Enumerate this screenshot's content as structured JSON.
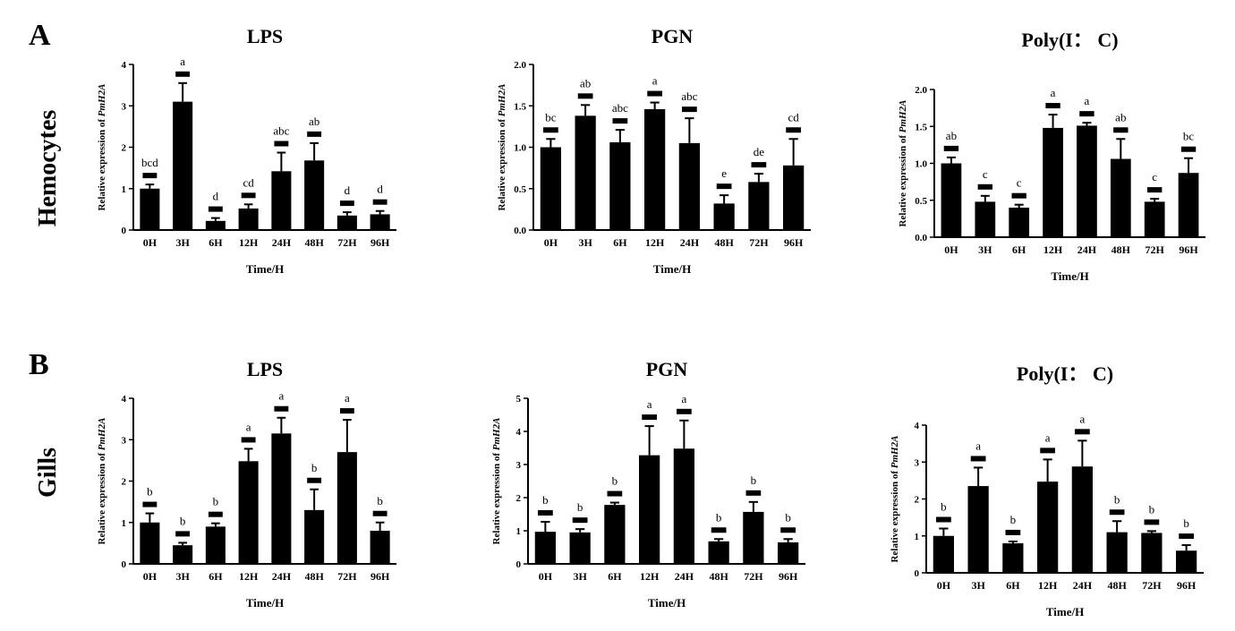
{
  "panel_labels": [
    "A",
    "B"
  ],
  "row_labels": [
    "Hemocytes",
    "Gills"
  ],
  "chart_data": [
    {
      "type": "bar",
      "panel": "A",
      "row": "Hemocytes",
      "title": "LPS",
      "xlabel": "Time/H",
      "ylabel": [
        "Relative expression of",
        "PmH2A"
      ],
      "categories": [
        "0H",
        "3H",
        "6H",
        "12H",
        "24H",
        "48H",
        "72H",
        "96H"
      ],
      "values": [
        1.0,
        3.1,
        0.22,
        0.52,
        1.42,
        1.68,
        0.35,
        0.38
      ],
      "errors": [
        0.1,
        0.45,
        0.07,
        0.1,
        0.45,
        0.42,
        0.08,
        0.08
      ],
      "letters": [
        "bcd",
        "a",
        "d",
        "cd",
        "abc",
        "ab",
        "d",
        "d"
      ],
      "ylim": [
        0,
        4
      ],
      "yticks": [
        "0",
        "1",
        "2",
        "3",
        "4"
      ],
      "bar_color": "#000000"
    },
    {
      "type": "bar",
      "panel": "A",
      "row": "Hemocytes",
      "title": "PGN",
      "xlabel": "Time/H",
      "ylabel": [
        "Relative expression of",
        "PmH2A"
      ],
      "categories": [
        "0H",
        "3H",
        "6H",
        "12H",
        "24H",
        "48H",
        "72H",
        "96H"
      ],
      "values": [
        1.0,
        1.38,
        1.06,
        1.46,
        1.05,
        0.32,
        0.58,
        0.78
      ],
      "errors": [
        0.1,
        0.13,
        0.15,
        0.08,
        0.3,
        0.1,
        0.1,
        0.32
      ],
      "letters": [
        "bc",
        "ab",
        "abc",
        "a",
        "abc",
        "e",
        "de",
        "cd"
      ],
      "ylim": [
        0,
        2
      ],
      "yticks": [
        "0.0",
        "0.5",
        "1.0",
        "1.5",
        "2.0"
      ],
      "bar_color": "#000000"
    },
    {
      "type": "bar",
      "panel": "A",
      "row": "Hemocytes",
      "title": "Poly(I： C)",
      "xlabel": "Time/H",
      "ylabel": [
        "Relative expression of",
        "PmH2A"
      ],
      "categories": [
        "0H",
        "3H",
        "6H",
        "12H",
        "24H",
        "48H",
        "72H",
        "96H"
      ],
      "values": [
        1.0,
        0.48,
        0.4,
        1.48,
        1.51,
        1.06,
        0.48,
        0.87
      ],
      "errors": [
        0.08,
        0.08,
        0.04,
        0.18,
        0.04,
        0.27,
        0.04,
        0.2
      ],
      "letters": [
        "ab",
        "c",
        "c",
        "a",
        "a",
        "ab",
        "c",
        "bc"
      ],
      "ylim": [
        0,
        2
      ],
      "yticks": [
        "0.0",
        "0.5",
        "1.0",
        "1.5",
        "2.0"
      ],
      "bar_color": "#000000"
    },
    {
      "type": "bar",
      "panel": "B",
      "row": "Gills",
      "title": "LPS",
      "xlabel": "Time/H",
      "ylabel": [
        "Relative expression of",
        "PmH2A"
      ],
      "categories": [
        "0H",
        "3H",
        "6H",
        "12H",
        "24H",
        "48H",
        "72H",
        "96H"
      ],
      "values": [
        1.0,
        0.45,
        0.9,
        2.48,
        3.15,
        1.3,
        2.7,
        0.8
      ],
      "errors": [
        0.22,
        0.06,
        0.08,
        0.3,
        0.38,
        0.5,
        0.78,
        0.2
      ],
      "letters": [
        "b",
        "b",
        "b",
        "a",
        "a",
        "b",
        "a",
        "b"
      ],
      "ylim": [
        0,
        4
      ],
      "yticks": [
        "0",
        "1",
        "2",
        "3",
        "4"
      ],
      "bar_color": "#000000"
    },
    {
      "type": "bar",
      "panel": "B",
      "row": "Gills",
      "title": "PGN",
      "xlabel": "Time/H",
      "ylabel": [
        "Relative expression of",
        "PmH2A"
      ],
      "categories": [
        "0H",
        "3H",
        "6H",
        "12H",
        "24H",
        "48H",
        "72H",
        "96H"
      ],
      "values": [
        0.97,
        0.95,
        1.78,
        3.28,
        3.48,
        0.68,
        1.57,
        0.65
      ],
      "errors": [
        0.3,
        0.1,
        0.07,
        0.88,
        0.85,
        0.07,
        0.3,
        0.1
      ],
      "letters": [
        "b",
        "b",
        "b",
        "a",
        "a",
        "b",
        "b",
        "b"
      ],
      "ylim": [
        0,
        5
      ],
      "yticks": [
        "0",
        "1",
        "2",
        "3",
        "4",
        "5"
      ],
      "bar_color": "#000000"
    },
    {
      "type": "bar",
      "panel": "B",
      "row": "Gills",
      "title": "Poly(I： C)",
      "xlabel": "Time/H",
      "ylabel": [
        "Relative expression of",
        "PmH2A"
      ],
      "categories": [
        "0H",
        "3H",
        "6H",
        "12H",
        "24H",
        "48H",
        "72H",
        "96H"
      ],
      "values": [
        1.0,
        2.35,
        0.8,
        2.47,
        2.88,
        1.1,
        1.08,
        0.6
      ],
      "errors": [
        0.2,
        0.5,
        0.05,
        0.6,
        0.7,
        0.3,
        0.05,
        0.15
      ],
      "letters": [
        "b",
        "a",
        "b",
        "a",
        "a",
        "b",
        "b",
        "b"
      ],
      "ylim": [
        0,
        4
      ],
      "yticks": [
        "0",
        "1",
        "2",
        "3",
        "4"
      ],
      "bar_color": "#000000"
    }
  ]
}
